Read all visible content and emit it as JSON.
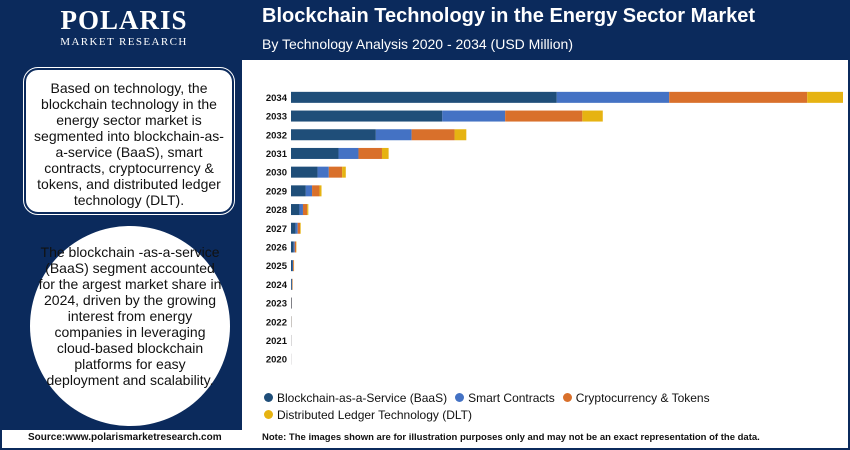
{
  "logo": {
    "name": "POLARIS",
    "sub": "MARKET RESEARCH"
  },
  "header": {
    "title": "Blockchain Technology in the Energy Sector Market",
    "subtitle": "By Technology Analysis 2020 - 2034 (USD Million)"
  },
  "callouts": {
    "first": "Based on technology, the blockchain technology in the energy sector market is segmented into blockchain-as-a-service (BaaS), smart contracts, cryptocurrency & tokens, and distributed ledger technology (DLT).",
    "second": "The blockchain -as-a-service (BaaS) segment accounted for the argest market share in 2024, driven by the growing interest from energy companies in leveraging cloud-based blockchain platforms for easy deployment and scalability."
  },
  "footer": {
    "source": "Source:www.polarismarketresearch.com",
    "note": "Note: The images shown are for illustration purposes only and may not be an exact representation of the data."
  },
  "colors": {
    "header_bg": "#0b2a5c",
    "baas": "#1f4e79",
    "smart": "#4472c4",
    "crypto": "#d9702b",
    "dlt": "#e6b312"
  },
  "chart_data": {
    "type": "bar",
    "orientation": "horizontal",
    "stacked": true,
    "categories": [
      "2034",
      "2033",
      "2032",
      "2031",
      "2030",
      "2029",
      "2028",
      "2027",
      "2026",
      "2025",
      "2024",
      "2023",
      "2022",
      "2021",
      "2020"
    ],
    "series": [
      {
        "name": "Blockchain-as-a-Service (BaaS)",
        "color": "#1f4e79",
        "values": [
          5200,
          2960,
          1660,
          930,
          520,
          290,
          165,
          92,
          52,
          29,
          16,
          9,
          5,
          3,
          1.5
        ]
      },
      {
        "name": "Smart Contracts",
        "color": "#4472c4",
        "values": [
          2200,
          1230,
          700,
          390,
          220,
          122,
          69,
          39,
          22,
          12,
          7,
          4,
          2,
          1,
          0.6
        ]
      },
      {
        "name": "Cryptocurrency & Tokens",
        "color": "#d9702b",
        "values": [
          2700,
          1510,
          840,
          460,
          260,
          145,
          82,
          46,
          26,
          15,
          8,
          4.5,
          2.5,
          1.4,
          0.8
        ]
      },
      {
        "name": "Distributed Ledger Technology (DLT)",
        "color": "#e6b312",
        "values": [
          700,
          400,
          230,
          130,
          72,
          40,
          23,
          13,
          7,
          4,
          2,
          1.2,
          0.7,
          0.4,
          0.2
        ]
      }
    ],
    "xlim": [
      0,
      10800
    ],
    "grid": false,
    "legend_position": "bottom"
  }
}
